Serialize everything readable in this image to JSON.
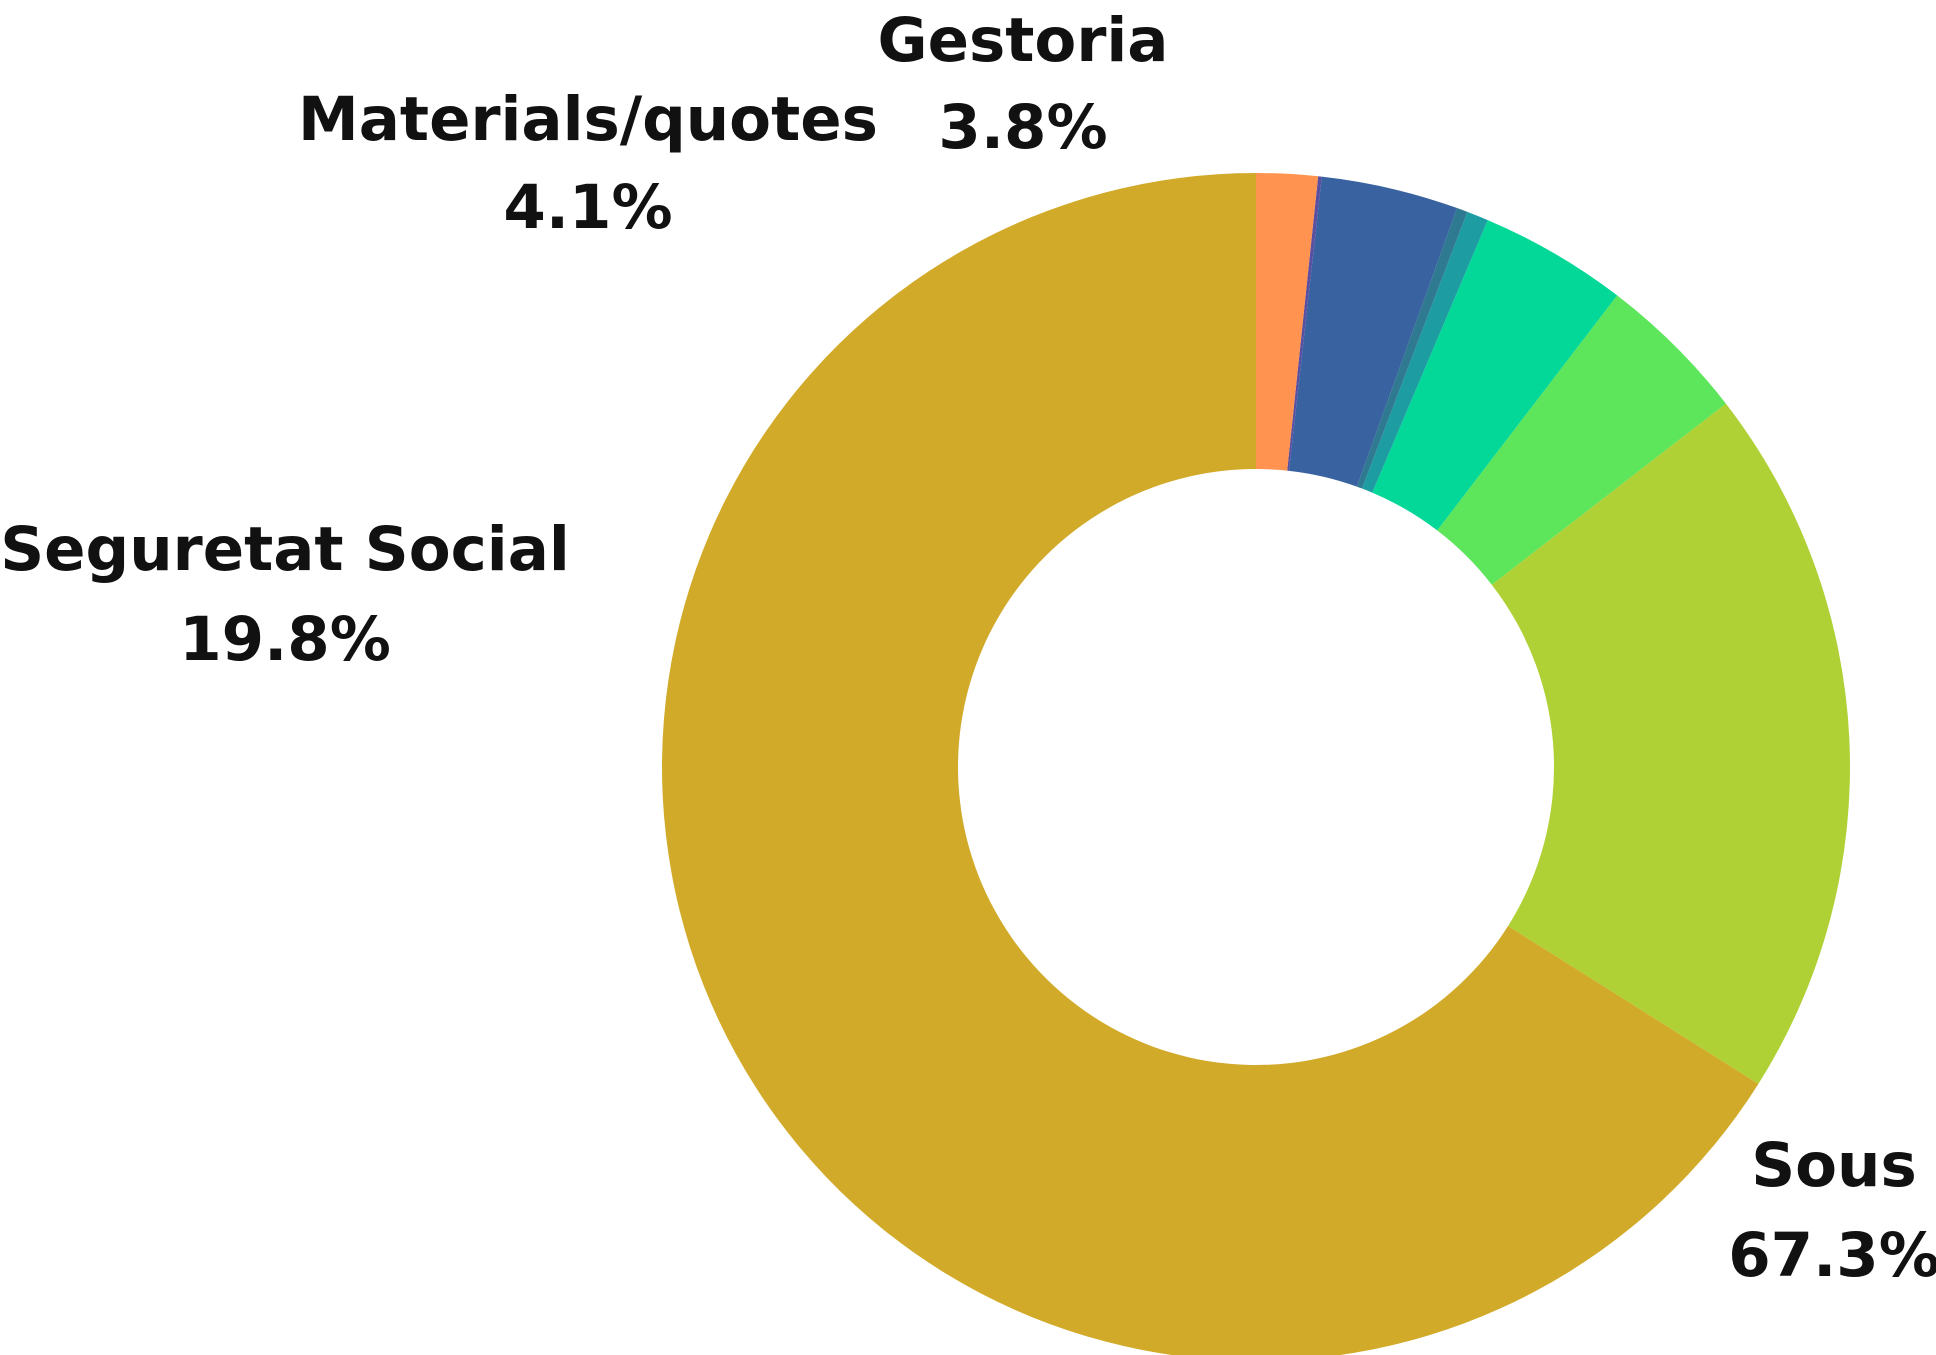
{
  "chart_data": {
    "type": "pie",
    "style": "donut",
    "title": "",
    "slices": [
      {
        "label": "Sous",
        "value": 67.3,
        "display": "67.3%",
        "color": "#D2AA2A",
        "labelled": true
      },
      {
        "label": "Seguretat Social",
        "value": 19.8,
        "display": "19.8%",
        "color": "#AFD136",
        "labelled": true
      },
      {
        "label": "",
        "value": 4.2,
        "display": "",
        "color": "#5DE55B",
        "labelled": false
      },
      {
        "label": "Materials/quotes",
        "value": 4.1,
        "display": "4.1%",
        "color": "#03D898",
        "labelled": true
      },
      {
        "label": "",
        "value": 0.6,
        "display": "",
        "color": "#1D9DA2",
        "labelled": false
      },
      {
        "label": "",
        "value": 0.3,
        "display": "",
        "color": "#2F7A90",
        "labelled": false
      },
      {
        "label": "Gestoria",
        "value": 3.8,
        "display": "3.8%",
        "color": "#3963A0",
        "labelled": true
      },
      {
        "label": "",
        "value": 0.1,
        "display": "",
        "color": "#5A4FA0",
        "labelled": false
      },
      {
        "label": "",
        "value": 1.7,
        "display": "",
        "color": "#FF934F",
        "labelled": false
      }
    ],
    "start_angle_deg": 0,
    "direction": "counterclockwise",
    "legend": "none"
  }
}
